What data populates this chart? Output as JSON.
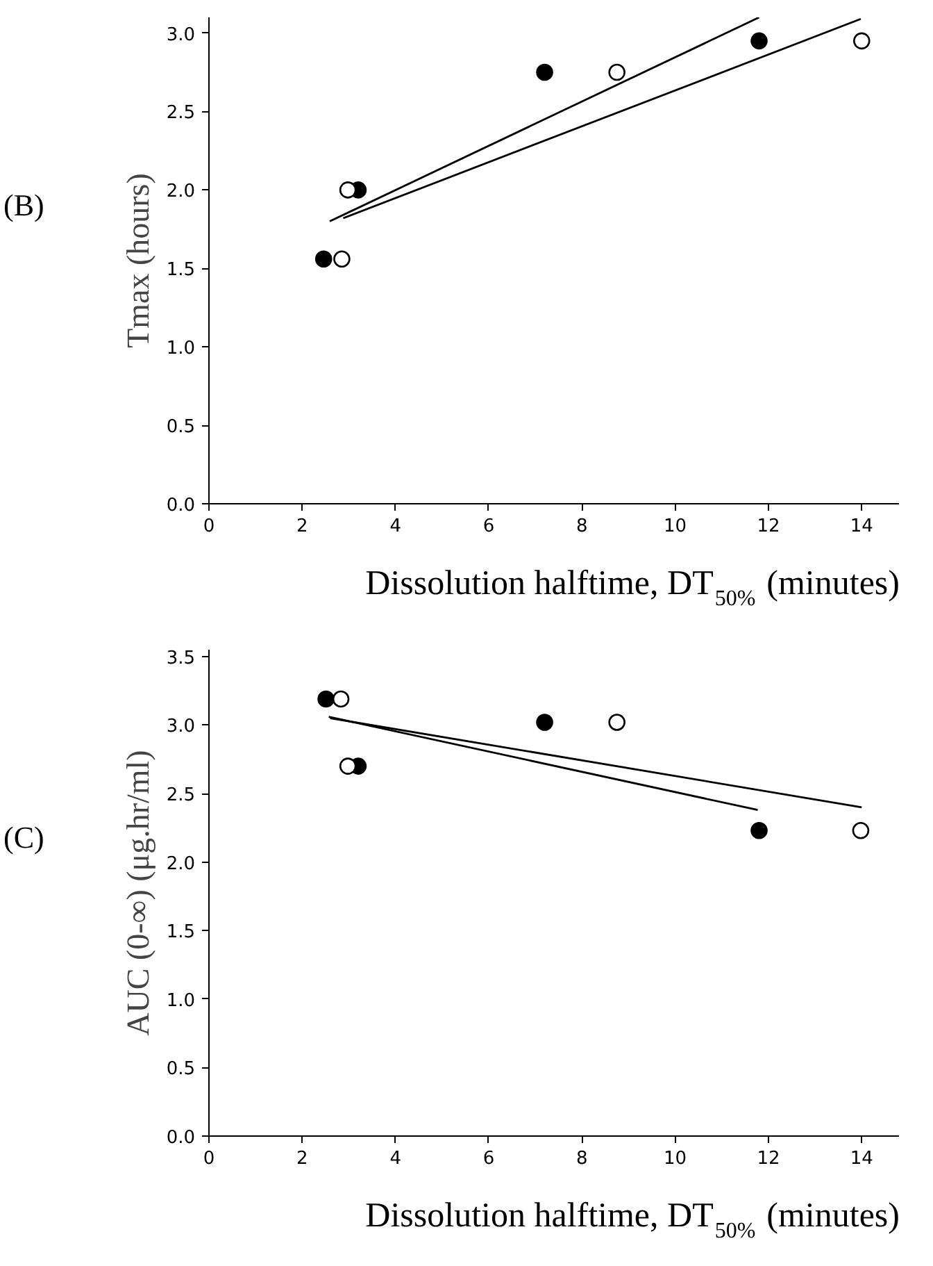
{
  "chart_data": [
    {
      "type": "scatter",
      "xlabel": "Dissolution halftime, DT$_{50%}$ (minutes)",
      "ylabel": "Tmax (hours)",
      "annotations": [
        "(B)"
      ],
      "xlim": [
        0,
        14.8
      ],
      "ylim": [
        0,
        3.1
      ],
      "xticks": [
        0,
        2,
        4,
        6,
        8,
        10,
        12,
        14
      ],
      "yticks": [
        {
          "value": 0,
          "label": "0.0"
        },
        0.5,
        {
          "value": 1,
          "label": "1.0"
        },
        1.5,
        {
          "value": 2,
          "label": "2.0"
        },
        2.5,
        {
          "value": 3,
          "label": "3.0"
        }
      ],
      "grid": false,
      "marker": "circle",
      "series": [
        {
          "color": "#000000",
          "x": [
            2.46,
            3.2,
            7.2,
            11.8
          ],
          "values": [
            1.56,
            2.0,
            2.75,
            2.95
          ]
        },
        {
          "color": "#ffffff",
          "x": [
            2.85,
            2.98,
            8.75,
            14.0
          ],
          "values": [
            1.56,
            2.0,
            2.75,
            2.95
          ]
        },
        {
          "type": "line",
          "marker": "none",
          "color": "#000000",
          "x": [
            2.59,
            11.8
          ],
          "values": [
            1.8,
            3.1
          ]
        },
        {
          "type": "line",
          "marker": "none",
          "color": "#000000",
          "x": [
            2.88,
            13.98
          ],
          "values": [
            1.82,
            3.09
          ]
        }
      ]
    },
    {
      "type": "scatter",
      "xlabel": "Dissolution halftime, DT$_{50%}$ (minutes)",
      "ylabel": "AUC (0-∞) (μg.hr/ml)",
      "annotations": [
        "(C)"
      ],
      "xlim": [
        0,
        14.8
      ],
      "ylim": [
        0,
        3.55
      ],
      "xticks": [
        0,
        2,
        4,
        6,
        8,
        10,
        12,
        14
      ],
      "yticks": [
        {
          "value": 0,
          "label": "0.0"
        },
        0.5,
        {
          "value": 1,
          "label": "1.0"
        },
        1.5,
        {
          "value": 2,
          "label": "2.0"
        },
        2.5,
        {
          "value": 3,
          "label": "3.0"
        },
        3.5
      ],
      "grid": false,
      "marker": "circle",
      "series": [
        {
          "color": "#000000",
          "x": [
            2.51,
            3.2,
            7.2,
            11.8
          ],
          "values": [
            3.19,
            2.7,
            3.02,
            2.23
          ]
        },
        {
          "color": "#ffffff",
          "x": [
            2.83,
            2.98,
            8.75,
            13.98
          ],
          "values": [
            3.19,
            2.7,
            3.02,
            2.23
          ]
        },
        {
          "type": "line",
          "marker": "none",
          "color": "#000000",
          "x": [
            2.57,
            11.77
          ],
          "values": [
            3.06,
            2.38
          ]
        },
        {
          "type": "line",
          "marker": "none",
          "color": "#000000",
          "x": [
            2.6,
            14.0
          ],
          "values": [
            3.05,
            2.4
          ]
        }
      ]
    }
  ]
}
